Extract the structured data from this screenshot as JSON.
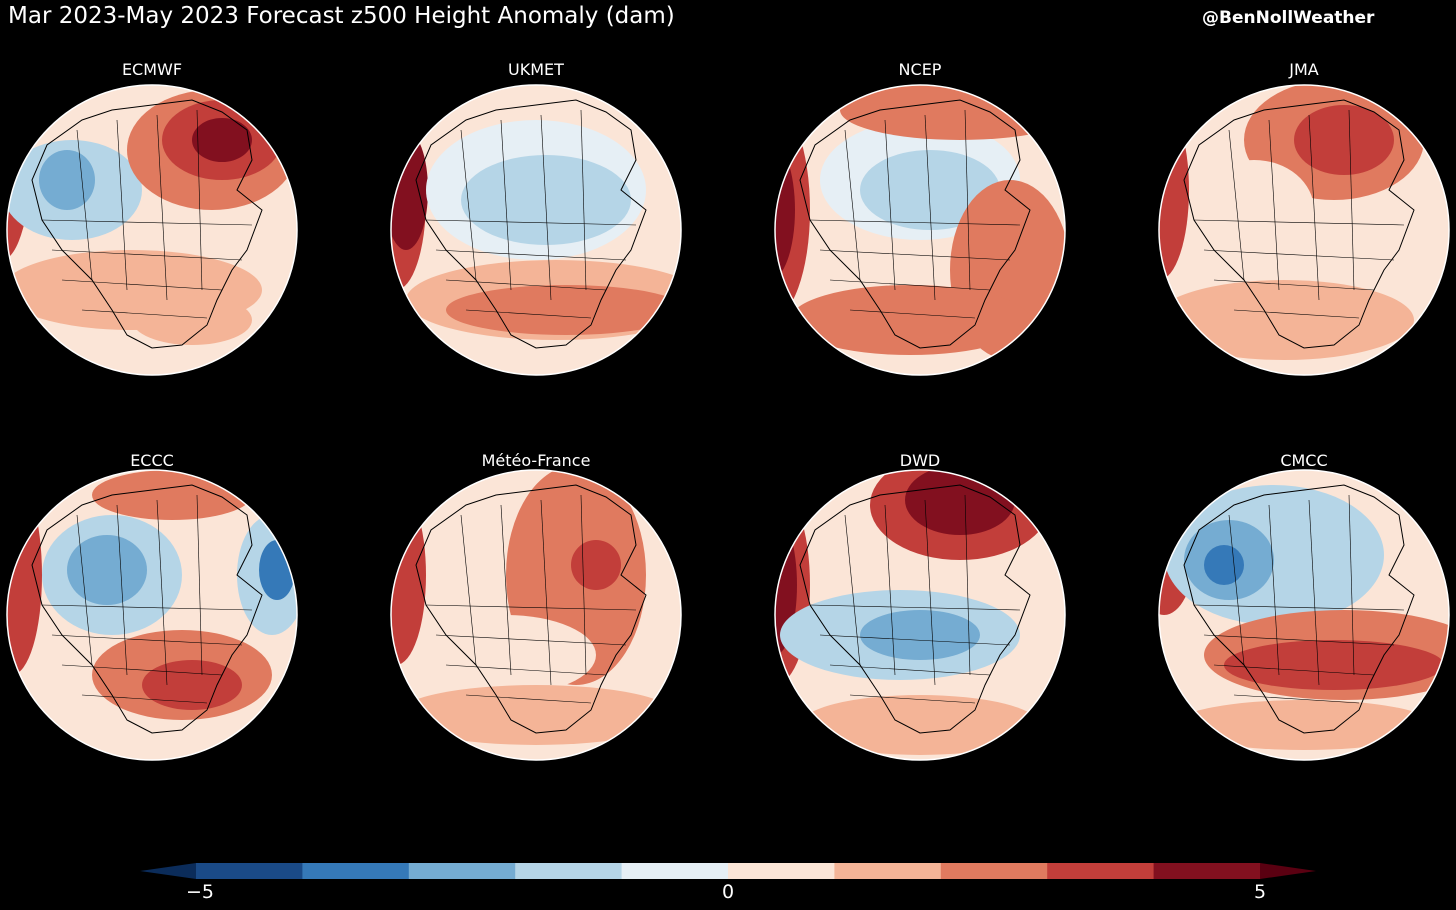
{
  "header": {
    "title": "Mar 2023-May 2023 Forecast z500 Height Anomaly (dam)",
    "credit": "@BenNollWeather"
  },
  "colors": {
    "levels": [
      "#1a4a87",
      "#3579b8",
      "#75acd2",
      "#b5d5e7",
      "#e6eff5",
      "#fbe5d7",
      "#f4b497",
      "#e07a5f",
      "#c23e3a",
      "#82101f"
    ],
    "under": "#0b2c5a",
    "over": "#5a0011",
    "background": "#000000",
    "coast": "#000000"
  },
  "chart_data": {
    "type": "heatmap",
    "title": "Mar 2023-May 2023 Forecast z500 Height Anomaly (dam)",
    "colorbar": {
      "range": [
        -5,
        5
      ],
      "ticks": [
        "−5",
        "0",
        "5"
      ],
      "levels": 10,
      "extend": "both"
    },
    "panels": [
      {
        "name": "ECMWF"
      },
      {
        "name": "UKMET"
      },
      {
        "name": "NCEP"
      },
      {
        "name": "JMA"
      },
      {
        "name": "ECCC"
      },
      {
        "name": "Météo-France"
      },
      {
        "name": "DWD"
      },
      {
        "name": "CMCC"
      }
    ]
  }
}
